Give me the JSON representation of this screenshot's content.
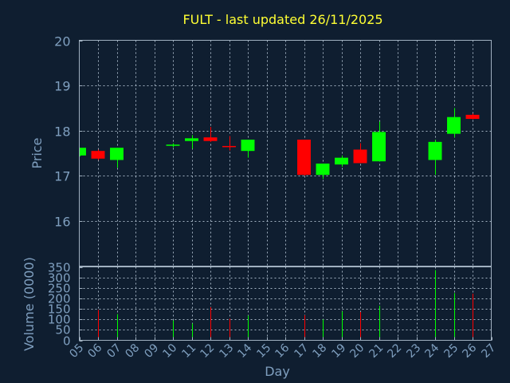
{
  "chart_data": {
    "type": "candlestick",
    "title": "FULT - last updated 26/11/2025",
    "xlabel": "Day",
    "price_ylabel": "Price",
    "volume_ylabel": "Volume (0000)",
    "x_ticks": [
      "05",
      "06",
      "07",
      "08",
      "09",
      "10",
      "11",
      "12",
      "13",
      "14",
      "15",
      "16",
      "17",
      "18",
      "19",
      "20",
      "21",
      "22",
      "23",
      "24",
      "25",
      "26",
      "27"
    ],
    "price_ticks": [
      16,
      17,
      18,
      19,
      20
    ],
    "price_ylim": [
      15.0,
      20.0
    ],
    "volume_ticks": [
      0,
      50,
      100,
      150,
      200,
      250,
      300,
      350
    ],
    "volume_ylim": [
      0,
      350
    ],
    "x_range": [
      5,
      27
    ],
    "grid": true,
    "up_color": "#00ff00",
    "down_color": "#ff0000",
    "candles": [
      {
        "day": 5,
        "open": 17.45,
        "high": 17.62,
        "low": 17.43,
        "close": 17.62,
        "volume": 0
      },
      {
        "day": 6,
        "open": 17.55,
        "high": 17.58,
        "low": 17.35,
        "close": 17.38,
        "volume": 145
      },
      {
        "day": 7,
        "open": 17.35,
        "high": 17.62,
        "low": 17.18,
        "close": 17.62,
        "volume": 125
      },
      {
        "day": 10,
        "open": 17.67,
        "high": 17.72,
        "low": 17.63,
        "close": 17.69,
        "volume": 95
      },
      {
        "day": 11,
        "open": 17.77,
        "high": 17.9,
        "low": 17.6,
        "close": 17.83,
        "volume": 80
      },
      {
        "day": 12,
        "open": 17.85,
        "high": 18.08,
        "low": 17.75,
        "close": 17.77,
        "volume": 158
      },
      {
        "day": 13,
        "open": 17.66,
        "high": 17.88,
        "low": 17.56,
        "close": 17.64,
        "volume": 103
      },
      {
        "day": 14,
        "open": 17.55,
        "high": 17.8,
        "low": 17.4,
        "close": 17.8,
        "volume": 118
      },
      {
        "day": 17,
        "open": 17.8,
        "high": 17.8,
        "low": 17.0,
        "close": 17.02,
        "volume": 120
      },
      {
        "day": 18,
        "open": 17.02,
        "high": 17.27,
        "low": 16.93,
        "close": 17.27,
        "volume": 100
      },
      {
        "day": 19,
        "open": 17.25,
        "high": 17.45,
        "low": 17.2,
        "close": 17.4,
        "volume": 138
      },
      {
        "day": 20,
        "open": 17.58,
        "high": 17.72,
        "low": 17.28,
        "close": 17.28,
        "volume": 135
      },
      {
        "day": 21,
        "open": 17.32,
        "high": 18.2,
        "low": 17.32,
        "close": 17.97,
        "volume": 165
      },
      {
        "day": 24,
        "open": 17.35,
        "high": 17.8,
        "low": 17.02,
        "close": 17.75,
        "volume": 335
      },
      {
        "day": 25,
        "open": 17.93,
        "high": 18.5,
        "low": 17.85,
        "close": 18.3,
        "volume": 225
      },
      {
        "day": 26,
        "open": 18.35,
        "high": 18.38,
        "low": 18.25,
        "close": 18.26,
        "volume": 222
      }
    ]
  }
}
